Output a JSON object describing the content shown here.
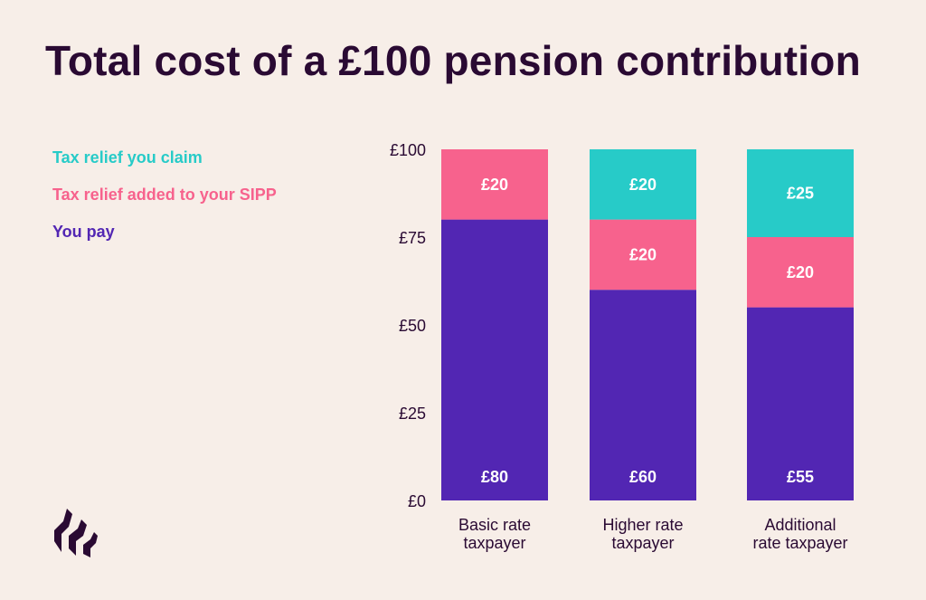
{
  "title": "Total cost of a £100 pension contribution",
  "legend": [
    {
      "label": "Tax relief you claim",
      "color": "#27cbc8"
    },
    {
      "label": "Tax relief added to your SIPP",
      "color": "#f7628d"
    },
    {
      "label": "You pay",
      "color": "#5226b3"
    }
  ],
  "colors": {
    "background": "#f7eee8",
    "title": "#2a0a33",
    "axis_text": "#2a0a33",
    "bar_label": "#ffffff",
    "logo": "#2a0a33"
  },
  "logo_icon": "brand-logo-icon",
  "chart_data": {
    "type": "bar",
    "stacked": true,
    "title": "Total cost of a £100 pension contribution",
    "xlabel": "",
    "ylabel": "",
    "ylim": [
      0,
      100
    ],
    "yticks": [
      0,
      25,
      50,
      75,
      100
    ],
    "ytick_labels": [
      "£0",
      "£25",
      "£50",
      "£75",
      "£100"
    ],
    "categories": [
      [
        "Basic rate",
        "taxpayer"
      ],
      [
        "Higher rate",
        "taxpayer"
      ],
      [
        "Additional",
        "rate taxpayer"
      ]
    ],
    "series": [
      {
        "name": "You pay",
        "color": "#5226b3",
        "values": [
          80,
          60,
          55
        ],
        "labels": [
          "£80",
          "£60",
          "£55"
        ]
      },
      {
        "name": "Tax relief added to your SIPP",
        "color": "#f7628d",
        "values": [
          20,
          20,
          20
        ],
        "labels": [
          "£20",
          "£20",
          "£20"
        ]
      },
      {
        "name": "Tax relief you claim",
        "color": "#27cbc8",
        "values": [
          0,
          20,
          25
        ],
        "labels": [
          "",
          "£20",
          "£25"
        ]
      }
    ],
    "grid": false,
    "legend_position": "left"
  }
}
